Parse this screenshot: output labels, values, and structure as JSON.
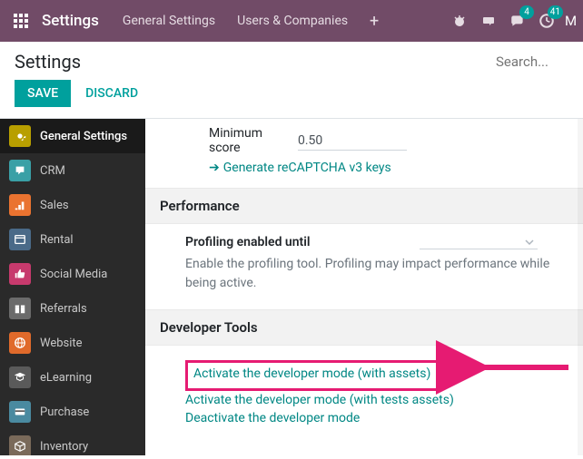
{
  "topnav": {
    "brand": "Settings",
    "menu": [
      "General Settings",
      "Users & Companies"
    ],
    "chat_badge": "4",
    "clock_badge": "41",
    "avatar_letter": "M"
  },
  "header": {
    "title": "Settings",
    "search_placeholder": "Search..."
  },
  "actions": {
    "save": "SAVE",
    "discard": "DISCARD"
  },
  "sidebar": {
    "items": [
      {
        "label": "General Settings",
        "icon": "gear",
        "color": "#b89f00",
        "active": true
      },
      {
        "label": "CRM",
        "icon": "crm",
        "color": "#3aa0a6",
        "active": false
      },
      {
        "label": "Sales",
        "icon": "sales",
        "color": "#ea7330",
        "active": false
      },
      {
        "label": "Rental",
        "icon": "rental",
        "color": "#4a6a88",
        "active": false
      },
      {
        "label": "Social Media",
        "icon": "thumb",
        "color": "#c73a6d",
        "active": false
      },
      {
        "label": "Referrals",
        "icon": "gift",
        "color": "#6b6b6b",
        "active": false
      },
      {
        "label": "Website",
        "icon": "globe",
        "color": "#e06a2b",
        "active": false
      },
      {
        "label": "eLearning",
        "icon": "grad",
        "color": "#5a5a5a",
        "active": false
      },
      {
        "label": "Purchase",
        "icon": "card",
        "color": "#4a8aa0",
        "active": false
      },
      {
        "label": "Inventory",
        "icon": "box",
        "color": "#7a6a5a",
        "active": false
      }
    ]
  },
  "content": {
    "min_score_label": "Minimum score",
    "min_score_value": "0.50",
    "recaptcha_link": "Generate reCAPTCHA v3 keys",
    "perf_heading": "Performance",
    "profiling_label": "Profiling enabled until",
    "profiling_help": "Enable the profiling tool. Profiling may impact performance while being active.",
    "dev_heading": "Developer Tools",
    "dev_links": {
      "activate_assets": "Activate the developer mode (with assets)",
      "activate_tests": "Activate the developer mode (with tests assets)",
      "deactivate": "Deactivate the developer mode"
    }
  },
  "colors": {
    "accent": "#00a09d",
    "link": "#008784",
    "highlight": "#e61b72",
    "navbar": "#714b67"
  }
}
